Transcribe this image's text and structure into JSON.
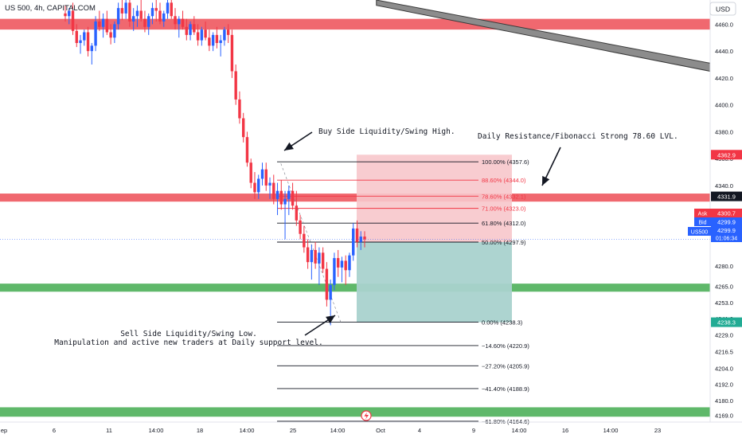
{
  "header": {
    "symbol_label": "US 500, 4h, CAPITALCOM",
    "currency_button": "USD"
  },
  "colors": {
    "up": "#2962ff",
    "down": "#f23645",
    "resistance_zone": "#f0686f",
    "support_zone": "#5fb86a",
    "fib_main": "#131722",
    "fib_red": "#f23645",
    "stop_area": "#f7c6cb",
    "target_area": "#a9d2cd",
    "trend_channel": "#8c8c8c"
  },
  "chart_data": {
    "type": "candlestick",
    "symbol": "US 500",
    "timeframe": "4h",
    "y_axis": {
      "min": 4164,
      "max": 4478,
      "tick_labels": [
        "4460.0",
        "4440.0",
        "4420.0",
        "4400.0",
        "4380.0",
        "4360.0",
        "4340.0",
        "4320.0",
        "4300.0",
        "4280.0",
        "4265.0",
        "4253.0",
        "4241.0",
        "4229.0",
        "4216.5",
        "4204.0",
        "4192.0",
        "4180.0",
        "4169.0"
      ]
    },
    "x_axis": {
      "tick_labels": [
        "ep",
        "6",
        "11",
        "14:00",
        "18",
        "14:00",
        "25",
        "14:00",
        "Oct",
        "4",
        "9",
        "14:00",
        "16",
        "14:00",
        "23"
      ]
    },
    "zones": [
      {
        "name": "resistance-top",
        "from": 4456,
        "to": 4464,
        "kind": "resistance"
      },
      {
        "name": "daily-resistance",
        "from": 4328,
        "to": 4334,
        "kind": "resistance"
      },
      {
        "name": "daily-support",
        "from": 4261,
        "to": 4267,
        "kind": "support"
      },
      {
        "name": "support-bottom",
        "from": 4168,
        "to": 4175,
        "kind": "support"
      }
    ],
    "fibonacci": [
      {
        "label": "100.00% (4357.6)",
        "value": 4357.6,
        "ratio": 1.0
      },
      {
        "label": "88.60% (4344.0)",
        "value": 4344.0,
        "ratio": 0.886
      },
      {
        "label": "78.60% (4332.1)",
        "value": 4332.1,
        "ratio": 0.786
      },
      {
        "label": "71.00% (4323.0)",
        "value": 4323.0,
        "ratio": 0.71
      },
      {
        "label": "61.80% (4312.0)",
        "value": 4312.0,
        "ratio": 0.618
      },
      {
        "label": "50.00% (4297.9)",
        "value": 4297.9,
        "ratio": 0.5
      },
      {
        "label": "0.00% (4238.3)",
        "value": 4238.3,
        "ratio": 0.0
      },
      {
        "label": "−14.60% (4220.9)",
        "value": 4220.9,
        "ratio": -0.146
      },
      {
        "label": "−27.20% (4205.9)",
        "value": 4205.9,
        "ratio": -0.272
      },
      {
        "label": "−41.40% (4188.9)",
        "value": 4188.9,
        "ratio": -0.414
      },
      {
        "label": "−61.80% (4164.6)",
        "value": 4164.6,
        "ratio": -0.618
      }
    ],
    "position": {
      "type": "long",
      "entry": 4297.9,
      "target": 4362.9,
      "stop": 4238.3
    },
    "trend_channel": {
      "upper": [
        [
          0.53,
          4478
        ],
        [
          1.0,
          4431
        ]
      ],
      "lower": [
        [
          0.53,
          4474
        ],
        [
          1.0,
          4425
        ]
      ]
    },
    "annotations": [
      {
        "name": "buy-side-liquidity",
        "text": "Buy Side Liquidity/Swing High."
      },
      {
        "name": "daily-resistance",
        "text": "Daily Resistance/Fibonacci Strong 78.60 LVL."
      },
      {
        "name": "sell-side-liquidity",
        "lines": [
          "Sell Side Liquidity/Swing Low.",
          "Manipulation and active new traders at Daily support level."
        ]
      }
    ],
    "price_tags": {
      "target": "4362.9",
      "resistance": "4331.9",
      "ask_label": "Ask",
      "ask_value": "4300.7",
      "bid_label": "Bid",
      "bid_value": "4299.9",
      "symbol_tag": "US500",
      "last_price": "4299.9",
      "last_price_value": 4299.9,
      "countdown": "01:06:34",
      "stop": "4238.3"
    },
    "candles": [
      [
        4468,
        4474,
        4462,
        4466
      ],
      [
        4466,
        4472,
        4460,
        4470
      ],
      [
        4470,
        4476,
        4452,
        4455
      ],
      [
        4455,
        4460,
        4443,
        4446
      ],
      [
        4446,
        4452,
        4438,
        4448
      ],
      [
        4448,
        4456,
        4444,
        4454
      ],
      [
        4454,
        4458,
        4436,
        4440
      ],
      [
        4440,
        4446,
        4430,
        4444
      ],
      [
        4444,
        4466,
        4440,
        4462
      ],
      [
        4462,
        4470,
        4455,
        4458
      ],
      [
        4458,
        4468,
        4450,
        4464
      ],
      [
        4464,
        4470,
        4452,
        4454
      ],
      [
        4454,
        4460,
        4445,
        4450
      ],
      [
        4450,
        4462,
        4446,
        4460
      ],
      [
        4460,
        4476,
        4456,
        4472
      ],
      [
        4472,
        4478,
        4463,
        4468
      ],
      [
        4468,
        4478,
        4464,
        4476
      ],
      [
        4476,
        4478,
        4458,
        4462
      ],
      [
        4462,
        4472,
        4455,
        4466
      ],
      [
        4466,
        4474,
        4458,
        4470
      ],
      [
        4470,
        4478,
        4462,
        4464
      ],
      [
        4464,
        4470,
        4454,
        4458
      ],
      [
        4458,
        4468,
        4452,
        4466
      ],
      [
        4466,
        4476,
        4460,
        4472
      ],
      [
        4472,
        4478,
        4462,
        4470
      ],
      [
        4470,
        4476,
        4460,
        4462
      ],
      [
        4462,
        4470,
        4458,
        4468
      ],
      [
        4468,
        4478,
        4464,
        4476
      ],
      [
        4476,
        4478,
        4464,
        4466
      ],
      [
        4466,
        4472,
        4456,
        4460
      ],
      [
        4460,
        4466,
        4450,
        4464
      ],
      [
        4464,
        4470,
        4456,
        4458
      ],
      [
        4458,
        4464,
        4448,
        4452
      ],
      [
        4452,
        4462,
        4448,
        4460
      ],
      [
        4460,
        4466,
        4452,
        4454
      ],
      [
        4454,
        4460,
        4444,
        4448
      ],
      [
        4448,
        4458,
        4444,
        4456
      ],
      [
        4456,
        4462,
        4448,
        4450
      ],
      [
        4450,
        4456,
        4440,
        4444
      ],
      [
        4444,
        4454,
        4440,
        4452
      ],
      [
        4452,
        4458,
        4442,
        4446
      ],
      [
        4446,
        4452,
        4436,
        4448
      ],
      [
        4448,
        4458,
        4444,
        4456
      ],
      [
        4456,
        4460,
        4446,
        4452
      ],
      [
        4452,
        4456,
        4420,
        4425
      ],
      [
        4425,
        4430,
        4400,
        4404
      ],
      [
        4404,
        4410,
        4386,
        4390
      ],
      [
        4390,
        4394,
        4372,
        4376
      ],
      [
        4376,
        4380,
        4354,
        4357
      ],
      [
        4357,
        4360,
        4338,
        4342
      ],
      [
        4342,
        4350,
        4330,
        4335
      ],
      [
        4335,
        4348,
        4330,
        4345
      ],
      [
        4345,
        4357,
        4340,
        4352
      ],
      [
        4352,
        4357,
        4336,
        4340
      ],
      [
        4340,
        4346,
        4330,
        4342
      ],
      [
        4342,
        4348,
        4326,
        4330
      ],
      [
        4330,
        4342,
        4318,
        4336
      ],
      [
        4336,
        4344,
        4322,
        4326
      ],
      [
        4326,
        4336,
        4300,
        4330
      ],
      [
        4330,
        4340,
        4318,
        4336
      ],
      [
        4336,
        4342,
        4322,
        4325
      ],
      [
        4325,
        4336,
        4310,
        4314
      ],
      [
        4314,
        4318,
        4300,
        4304
      ],
      [
        4304,
        4310,
        4290,
        4294
      ],
      [
        4294,
        4300,
        4278,
        4283
      ],
      [
        4283,
        4296,
        4270,
        4292
      ],
      [
        4292,
        4298,
        4278,
        4282
      ],
      [
        4282,
        4294,
        4266,
        4290
      ],
      [
        4290,
        4294,
        4275,
        4278
      ],
      [
        4278,
        4283,
        4250,
        4255
      ],
      [
        4255,
        4270,
        4236,
        4266
      ],
      [
        4266,
        4290,
        4262,
        4286
      ],
      [
        4286,
        4292,
        4272,
        4279
      ],
      [
        4279,
        4287,
        4268,
        4284
      ],
      [
        4284,
        4288,
        4266,
        4277
      ],
      [
        4277,
        4290,
        4272,
        4288
      ],
      [
        4288,
        4312,
        4284,
        4308
      ],
      [
        4308,
        4314,
        4294,
        4298
      ],
      [
        4298,
        4306,
        4292,
        4302
      ],
      [
        4302,
        4306,
        4294,
        4299.9
      ]
    ]
  }
}
